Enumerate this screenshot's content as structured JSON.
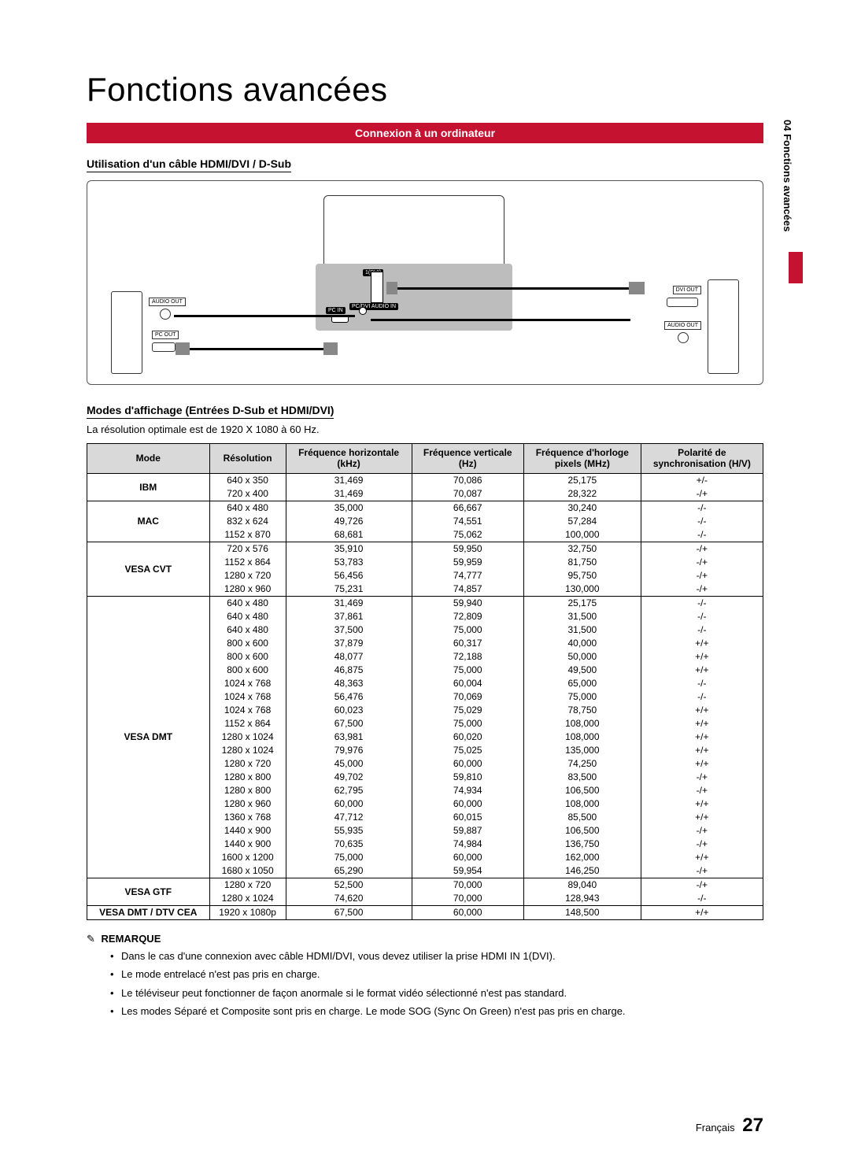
{
  "page": {
    "title": "Fonctions avancées",
    "section_bar": "Connexion à un ordinateur",
    "side_tab": "04  Fonctions avancées",
    "sub_heading_1": "Utilisation d'un câble HDMI/DVI / D-Sub",
    "sub_heading_2": "Modes d'affichage (Entrées D-Sub et HDMI/DVI)",
    "optimal_res_note": "La résolution optimale est de 1920 X 1080 à 60 Hz.",
    "footer_lang": "Français",
    "footer_page": "27"
  },
  "diagram": {
    "labels": {
      "audio_out_left": "AUDIO OUT",
      "pc_out_left": "PC OUT",
      "dvi_out_right": "DVI OUT",
      "audio_out_right": "AUDIO OUT",
      "tv_port_1dvi": "1(DVI)",
      "tv_port_pc_in": "PC IN",
      "tv_port_pc_dvi_audio": "PC/DVI AUDIO IN"
    }
  },
  "table": {
    "headers": {
      "mode": "Mode",
      "resolution": "Résolution",
      "hfreq": "Fréquence horizontale\n(kHz)",
      "vfreq": "Fréquence verticale\n(Hz)",
      "pclock": "Fréquence d'horloge\npixels (MHz)",
      "pol": "Polarité de\nsynchronisation (H/V)"
    },
    "groups": [
      {
        "mode": "IBM",
        "rows": [
          {
            "res": "640 x 350",
            "h": "31,469",
            "v": "70,086",
            "p": "25,175",
            "pol": "+/-"
          },
          {
            "res": "720 x 400",
            "h": "31,469",
            "v": "70,087",
            "p": "28,322",
            "pol": "-/+"
          }
        ]
      },
      {
        "mode": "MAC",
        "rows": [
          {
            "res": "640 x 480",
            "h": "35,000",
            "v": "66,667",
            "p": "30,240",
            "pol": "-/-"
          },
          {
            "res": "832 x 624",
            "h": "49,726",
            "v": "74,551",
            "p": "57,284",
            "pol": "-/-"
          },
          {
            "res": "1152 x 870",
            "h": "68,681",
            "v": "75,062",
            "p": "100,000",
            "pol": "-/-"
          }
        ]
      },
      {
        "mode": "VESA CVT",
        "rows": [
          {
            "res": "720 x 576",
            "h": "35,910",
            "v": "59,950",
            "p": "32,750",
            "pol": "-/+"
          },
          {
            "res": "1152 x 864",
            "h": "53,783",
            "v": "59,959",
            "p": "81,750",
            "pol": "-/+"
          },
          {
            "res": "1280 x 720",
            "h": "56,456",
            "v": "74,777",
            "p": "95,750",
            "pol": "-/+"
          },
          {
            "res": "1280 x 960",
            "h": "75,231",
            "v": "74,857",
            "p": "130,000",
            "pol": "-/+"
          }
        ]
      },
      {
        "mode": "VESA DMT",
        "rows": [
          {
            "res": "640 x 480",
            "h": "31,469",
            "v": "59,940",
            "p": "25,175",
            "pol": "-/-"
          },
          {
            "res": "640 x 480",
            "h": "37,861",
            "v": "72,809",
            "p": "31,500",
            "pol": "-/-"
          },
          {
            "res": "640 x 480",
            "h": "37,500",
            "v": "75,000",
            "p": "31,500",
            "pol": "-/-"
          },
          {
            "res": "800 x 600",
            "h": "37,879",
            "v": "60,317",
            "p": "40,000",
            "pol": "+/+"
          },
          {
            "res": "800 x 600",
            "h": "48,077",
            "v": "72,188",
            "p": "50,000",
            "pol": "+/+"
          },
          {
            "res": "800 x 600",
            "h": "46,875",
            "v": "75,000",
            "p": "49,500",
            "pol": "+/+"
          },
          {
            "res": "1024 x 768",
            "h": "48,363",
            "v": "60,004",
            "p": "65,000",
            "pol": "-/-"
          },
          {
            "res": "1024 x 768",
            "h": "56,476",
            "v": "70,069",
            "p": "75,000",
            "pol": "-/-"
          },
          {
            "res": "1024 x 768",
            "h": "60,023",
            "v": "75,029",
            "p": "78,750",
            "pol": "+/+"
          },
          {
            "res": "1152 x 864",
            "h": "67,500",
            "v": "75,000",
            "p": "108,000",
            "pol": "+/+"
          },
          {
            "res": "1280 x 1024",
            "h": "63,981",
            "v": "60,020",
            "p": "108,000",
            "pol": "+/+"
          },
          {
            "res": "1280 x 1024",
            "h": "79,976",
            "v": "75,025",
            "p": "135,000",
            "pol": "+/+"
          },
          {
            "res": "1280 x 720",
            "h": "45,000",
            "v": "60,000",
            "p": "74,250",
            "pol": "+/+"
          },
          {
            "res": "1280 x 800",
            "h": "49,702",
            "v": "59,810",
            "p": "83,500",
            "pol": "-/+"
          },
          {
            "res": "1280 x 800",
            "h": "62,795",
            "v": "74,934",
            "p": "106,500",
            "pol": "-/+"
          },
          {
            "res": "1280 x 960",
            "h": "60,000",
            "v": "60,000",
            "p": "108,000",
            "pol": "+/+"
          },
          {
            "res": "1360 x 768",
            "h": "47,712",
            "v": "60,015",
            "p": "85,500",
            "pol": "+/+"
          },
          {
            "res": "1440 x 900",
            "h": "55,935",
            "v": "59,887",
            "p": "106,500",
            "pol": "-/+"
          },
          {
            "res": "1440 x 900",
            "h": "70,635",
            "v": "74,984",
            "p": "136,750",
            "pol": "-/+"
          },
          {
            "res": "1600 x 1200",
            "h": "75,000",
            "v": "60,000",
            "p": "162,000",
            "pol": "+/+"
          },
          {
            "res": "1680 x 1050",
            "h": "65,290",
            "v": "59,954",
            "p": "146,250",
            "pol": "-/+"
          }
        ]
      },
      {
        "mode": "VESA GTF",
        "rows": [
          {
            "res": "1280 x 720",
            "h": "52,500",
            "v": "70,000",
            "p": "89,040",
            "pol": "-/+"
          },
          {
            "res": "1280 x 1024",
            "h": "74,620",
            "v": "70,000",
            "p": "128,943",
            "pol": "-/-"
          }
        ]
      },
      {
        "mode": "VESA DMT / DTV CEA",
        "rows": [
          {
            "res": "1920 x 1080p",
            "h": "67,500",
            "v": "60,000",
            "p": "148,500",
            "pol": "+/+"
          }
        ]
      }
    ]
  },
  "remarque": {
    "heading": "REMARQUE",
    "items": [
      "Dans le cas d'une connexion avec câble HDMI/DVI, vous devez utiliser la prise HDMI IN 1(DVI).",
      "Le mode entrelacé n'est pas pris en charge.",
      "Le téléviseur peut fonctionner de façon anormale si le format vidéo sélectionné n'est pas standard.",
      "Les modes Séparé et Composite sont pris en charge. Le mode SOG (Sync On Green) n'est pas pris en charge."
    ]
  },
  "colors": {
    "accent": "#c41230",
    "header_bg": "#d9d9d9",
    "border": "#000000",
    "diagram_gray": "#bdbdbd"
  }
}
